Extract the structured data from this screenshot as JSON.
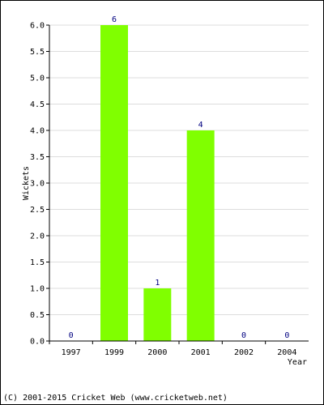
{
  "chart_data": {
    "type": "bar",
    "categories": [
      "1997",
      "1999",
      "2000",
      "2001",
      "2002",
      "2004"
    ],
    "values": [
      0,
      6,
      1,
      4,
      0,
      0
    ],
    "data_labels": [
      "0",
      "6",
      "1",
      "4",
      "0",
      "0"
    ],
    "xlabel": "Year",
    "ylabel": "Wickets",
    "ylim": [
      0,
      6
    ],
    "yticks": [
      "0.0",
      "0.5",
      "1.0",
      "1.5",
      "2.0",
      "2.5",
      "3.0",
      "3.5",
      "4.0",
      "4.5",
      "5.0",
      "5.5",
      "6.0"
    ],
    "grid": true,
    "bar_color": "#80ff00",
    "label_color": "#000080",
    "grid_color": "#dddddd"
  },
  "footer": {
    "copyright": "(C) 2001-2015 Cricket Web (www.cricketweb.net)"
  }
}
